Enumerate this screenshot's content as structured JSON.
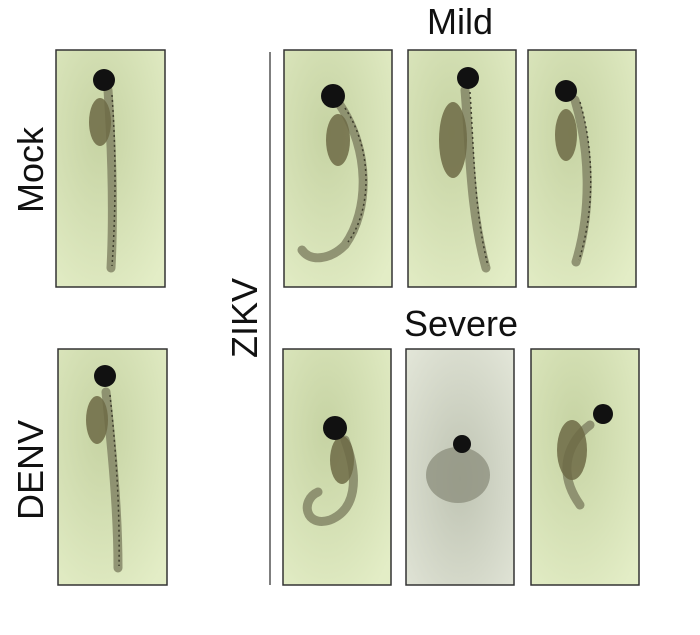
{
  "labels": {
    "mild": "Mild",
    "severe": "Severe",
    "mock": "Mock",
    "denv": "DENV",
    "zikv": "ZIKV"
  }
}
